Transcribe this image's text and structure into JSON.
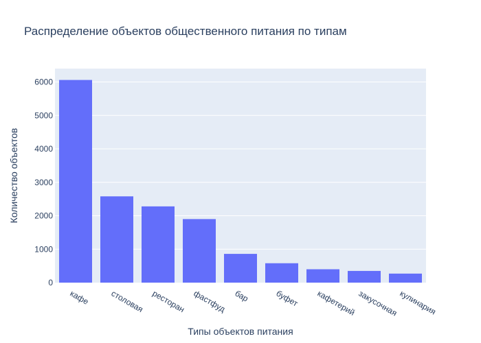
{
  "chart_data": {
    "type": "bar",
    "title": "Распределение объектов общественного питания по типам",
    "xlabel": "Типы объектов питания",
    "ylabel": "Количество объектов",
    "categories": [
      "кафе",
      "столовая",
      "ресторан",
      "фастфуд",
      "бар",
      "буфет",
      "кафетерий",
      "закусочная",
      "кулинария"
    ],
    "values": [
      6060,
      2580,
      2280,
      1900,
      860,
      580,
      400,
      350,
      270
    ],
    "ylim": [
      0,
      6400
    ],
    "yticks": [
      0,
      1000,
      2000,
      3000,
      4000,
      5000,
      6000
    ],
    "grid": true,
    "colors": {
      "bar": "#636efa",
      "plot_bg": "#e5ecf6",
      "grid": "#ffffff",
      "text": "#2a3f5f"
    }
  }
}
